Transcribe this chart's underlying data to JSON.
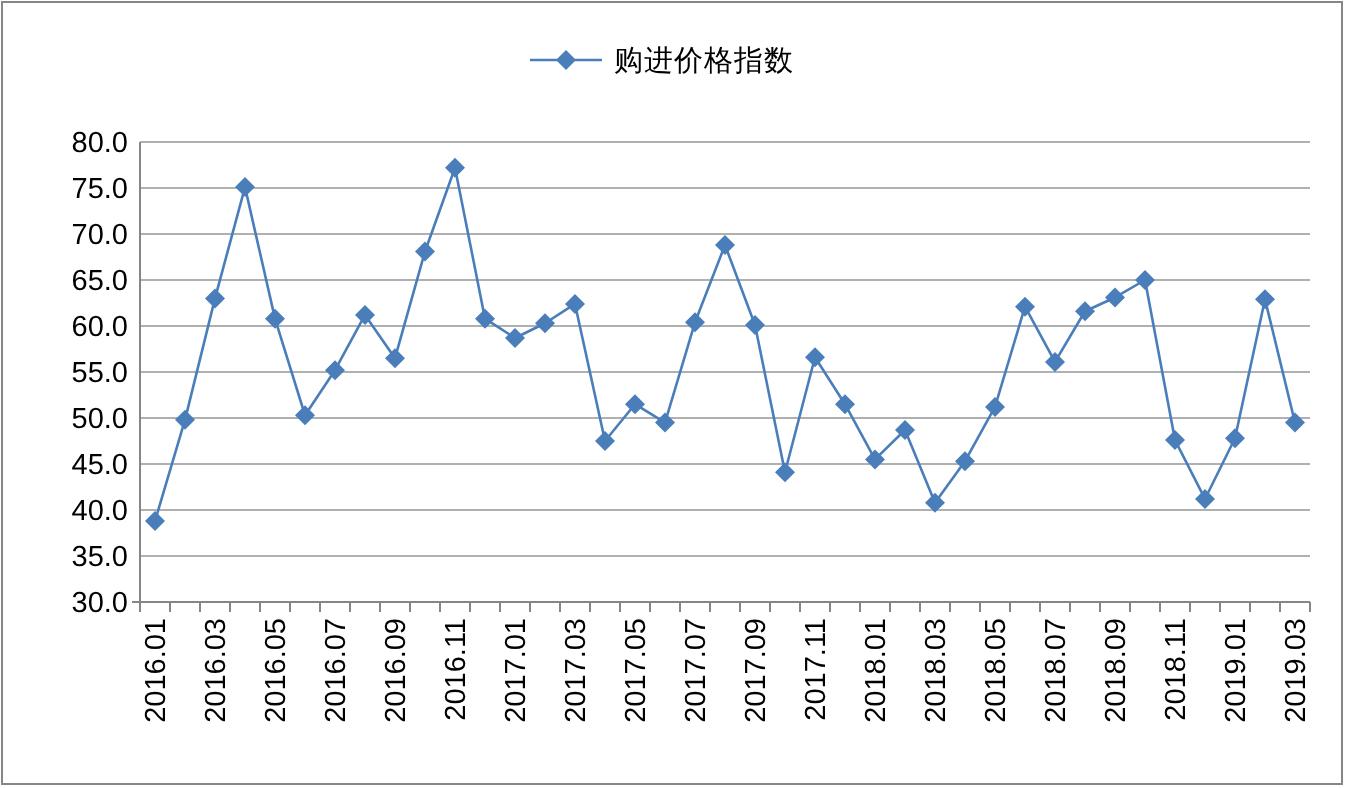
{
  "chart_data": {
    "type": "line",
    "categories": [
      "2016.01",
      null,
      "2016.03",
      null,
      "2016.05",
      null,
      "2016.07",
      null,
      "2016.09",
      null,
      "2016.11",
      null,
      "2017.01",
      null,
      "2017.03",
      null,
      "2017.05",
      null,
      "2017.07",
      null,
      "2017.09",
      null,
      "2017.11",
      null,
      "2018.01",
      null,
      "2018.03",
      null,
      "2018.05",
      null,
      "2018.07",
      null,
      "2018.09",
      null,
      "2018.11",
      null,
      "2019.01",
      null,
      "2019.03"
    ],
    "series": [
      {
        "name": "购进价格指数",
        "color": "#4a7ebb",
        "values": [
          38.8,
          49.8,
          63.0,
          75.1,
          60.8,
          50.3,
          55.2,
          61.2,
          56.5,
          68.1,
          77.2,
          60.8,
          58.7,
          60.3,
          62.4,
          47.5,
          51.5,
          49.5,
          60.4,
          68.8,
          60.1,
          44.1,
          56.6,
          51.5,
          45.5,
          48.7,
          40.8,
          45.3,
          51.2,
          62.1,
          56.1,
          61.6,
          63.1,
          65.0,
          47.6,
          41.2,
          47.8,
          62.9,
          49.5
        ]
      }
    ],
    "ylim": [
      30,
      80
    ],
    "yticks": [
      {
        "value": 30,
        "label": "30.0"
      },
      {
        "value": 35,
        "label": "35.0"
      },
      {
        "value": 40,
        "label": "40.0"
      },
      {
        "value": 45,
        "label": "45.0"
      },
      {
        "value": 50,
        "label": "50.0"
      },
      {
        "value": 55,
        "label": "55.0"
      },
      {
        "value": 60,
        "label": "60.0"
      },
      {
        "value": 65,
        "label": "65.0"
      },
      {
        "value": 70,
        "label": "70.0"
      },
      {
        "value": 75,
        "label": "75.0"
      },
      {
        "value": 80,
        "label": "80.0"
      }
    ],
    "grid": "y",
    "legend": "top",
    "marker": "diamond",
    "line_style": "solid"
  }
}
